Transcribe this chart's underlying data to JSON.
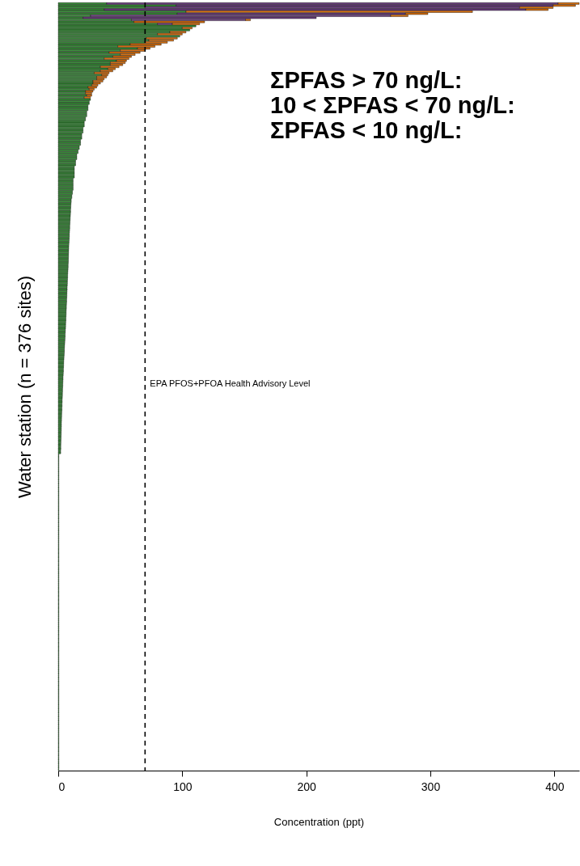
{
  "chart_data": {
    "type": "bar",
    "orientation": "horizontal",
    "stacked": true,
    "xlabel": "Concentration (ppt)",
    "ylabel": "Water station (n = 376 sites)",
    "xlim": [
      0,
      420
    ],
    "xticks": [
      0,
      100,
      200,
      300,
      400
    ],
    "grid": false,
    "categories": [
      null,
      null,
      null,
      null,
      null,
      null,
      null,
      null,
      null,
      null,
      null,
      null,
      null,
      null,
      null,
      null,
      null,
      null,
      null,
      null,
      null,
      null,
      null,
      null,
      null,
      null,
      null,
      null,
      null,
      null,
      null,
      null,
      null,
      null,
      null,
      null,
      null,
      null,
      null,
      null,
      null,
      null,
      null,
      null,
      null,
      null,
      null,
      null,
      null,
      null,
      null,
      null,
      null,
      null,
      null,
      null,
      null,
      null,
      null,
      null,
      null,
      null,
      null,
      null,
      null,
      null,
      null,
      null,
      null,
      null,
      null,
      null,
      null,
      null,
      null,
      null,
      null,
      null,
      null,
      null,
      null,
      null,
      null,
      null,
      null,
      null,
      null,
      null,
      null,
      null,
      null,
      null,
      null,
      null,
      null,
      null,
      null,
      null,
      null,
      null,
      null,
      null,
      null,
      null,
      null,
      null,
      null,
      null,
      null,
      null,
      null,
      null,
      null,
      null,
      null,
      null,
      null,
      null,
      null,
      null,
      null,
      null,
      null,
      null,
      null,
      null,
      null,
      null,
      null,
      null,
      null,
      null,
      null,
      null,
      null,
      null,
      null,
      null,
      null,
      null,
      null,
      null,
      null,
      null,
      null,
      null,
      null,
      null,
      null,
      null,
      null,
      null,
      null,
      null,
      null,
      null,
      null,
      null,
      null,
      null,
      null,
      null,
      null,
      null,
      null,
      null,
      null,
      null,
      null,
      null,
      null,
      null,
      null,
      null,
      null,
      null,
      null,
      null,
      null,
      null,
      null,
      null,
      null,
      null,
      null,
      null,
      null,
      null,
      null,
      null,
      null,
      null,
      null,
      null,
      null,
      null,
      null,
      null,
      null,
      null,
      null,
      null,
      null,
      null,
      null,
      null,
      null,
      null,
      null,
      null,
      null,
      null,
      null,
      null,
      null,
      null,
      null,
      null,
      null,
      null,
      null,
      null,
      null,
      null,
      null,
      null,
      null,
      null,
      null,
      null,
      null,
      null,
      null,
      null,
      null,
      null,
      null,
      null,
      null,
      null,
      null,
      null,
      null,
      null,
      null,
      null,
      null,
      null,
      null,
      null,
      null,
      null,
      null,
      null,
      null,
      null,
      null,
      null,
      null,
      null,
      null,
      null,
      null,
      null,
      null,
      null,
      null,
      null,
      null,
      null,
      null,
      null,
      null,
      null,
      null,
      null,
      null,
      null,
      null,
      null,
      null,
      null,
      null,
      null,
      null,
      null,
      null,
      null,
      null,
      null,
      null,
      null,
      null,
      null,
      null,
      null,
      null,
      null,
      null,
      null,
      null,
      null,
      null,
      null,
      null,
      null,
      null,
      null,
      null,
      null,
      null,
      null,
      null,
      null,
      null,
      null,
      null,
      null,
      null,
      null,
      null,
      null,
      null,
      null,
      null,
      null,
      null,
      null,
      null,
      null,
      null,
      null,
      null,
      null,
      null,
      null,
      null,
      null,
      null,
      null,
      null,
      null,
      null,
      null,
      null,
      null,
      null,
      null,
      null,
      null,
      null,
      null,
      null,
      null,
      null,
      null,
      null,
      null,
      null,
      null,
      null,
      null,
      null,
      null,
      null,
      null,
      null,
      null,
      null,
      null,
      null,
      null,
      null,
      null,
      null,
      null
    ],
    "series": [
      {
        "color": "#3a8f3a",
        "values": [
          39,
          95,
          70,
          37,
          103,
          96,
          26,
          20,
          59,
          61,
          80,
          111,
          100,
          106,
          90,
          80,
          98,
          71,
          73,
          70,
          58,
          48,
          64,
          50,
          41,
          50,
          44,
          37,
          47,
          42,
          42,
          34,
          40,
          34,
          29,
          35,
          31,
          31,
          28,
          28,
          27,
          24,
          25,
          22,
          22,
          23,
          21,
          26,
          25,
          25,
          24,
          24,
          24,
          23,
          23,
          23,
          22,
          22,
          21,
          21,
          21,
          20,
          20,
          20,
          19,
          19,
          19,
          18,
          18,
          18,
          17,
          17,
          16,
          16,
          15,
          15,
          15,
          14,
          14,
          14,
          13,
          13,
          13,
          13,
          13,
          13,
          12,
          12,
          12,
          12,
          12,
          12,
          11.5,
          11.5,
          11,
          11,
          10.5,
          10.5,
          10.3,
          10.2,
          10.1,
          10,
          10,
          9.9,
          9.8,
          9.7,
          9.6,
          9.5,
          9.4,
          9.3,
          9.3,
          9.2,
          9.1,
          9,
          9,
          8.9,
          8.8,
          8.7,
          8.6,
          8.5,
          8.5,
          8.4,
          8.4,
          8.3,
          8.3,
          8.2,
          8.2,
          8.1,
          8,
          8,
          7.9,
          7.8,
          7.7,
          7.6,
          7.6,
          7.5,
          7.4,
          7.4,
          7.3,
          7.2,
          7.2,
          7.1,
          7,
          7,
          6.9,
          6.8,
          6.8,
          6.7,
          6.6,
          6.6,
          6.5,
          6.4,
          6.4,
          6.3,
          6.2,
          6.2,
          6.1,
          6,
          6,
          5.9,
          5.8,
          5.7,
          5.6,
          5.6,
          5.5,
          5.4,
          5.3,
          5.2,
          5.1,
          5,
          5,
          4.9,
          4.8,
          4.7,
          4.6,
          4.5,
          4.4,
          4.4,
          4.3,
          4.2,
          4.2,
          4.1,
          4,
          3.9,
          3.9,
          3.8,
          3.7,
          3.7,
          3.6,
          3.5,
          3.5,
          3.4,
          3.4,
          3.3,
          3.2,
          3.2,
          3.1,
          3.1,
          3,
          3,
          2.9,
          2.8,
          2.8,
          2.7,
          2.7,
          2.6,
          2.6,
          2.6,
          2.5,
          2.5,
          2.4,
          2.4,
          2.3,
          2.3,
          2.2,
          2.2,
          2.1,
          2.1,
          2.1,
          2,
          2,
          0.5,
          0.5,
          0.5,
          0.5,
          0.5,
          0.5,
          0.5,
          0.5,
          0.5,
          0.5,
          0.5,
          0.5,
          0.5,
          0.5,
          0.5,
          0.5,
          0.5,
          0.5,
          0.5,
          0.5,
          0.5,
          0.5,
          0.5,
          0.5,
          0.5,
          0.5,
          0.5,
          0.5,
          0.5,
          0.5,
          0.5,
          0.5,
          0.5,
          0.5,
          0.5,
          0.5,
          0.5,
          0.5,
          0.5,
          0.5,
          0.5,
          0.5,
          0.5,
          0.5,
          0.5,
          0.5,
          0.5,
          0.5,
          0.5,
          0.5,
          0.5,
          0.5,
          0.5,
          0.5,
          0.5,
          0.5,
          0.5,
          0.5,
          0.5,
          0.5,
          0.5,
          0.5,
          0.5,
          0.5,
          0.5,
          0.5,
          0.5,
          0.5,
          0.5,
          0.5,
          0.5,
          0.5,
          0.5,
          0.5,
          0.5,
          0.5,
          0.5,
          0.5,
          0.5,
          0.5,
          0.5,
          0.5,
          0.5,
          0.5,
          0.5,
          0.5,
          0.5,
          0.5,
          0.5,
          0.5,
          0.5,
          0.5,
          0.5,
          0.5,
          0.5,
          0.5,
          0.5,
          0.5,
          0.5,
          0.5,
          0.5,
          0.5,
          0.5,
          0.5,
          0.5,
          0.5,
          0.5,
          0.5,
          0.5,
          0.5,
          0.5,
          0.5,
          0.5,
          0.5,
          0.5,
          0.5,
          0.5,
          0.5,
          0.5,
          0.5,
          0.5,
          0.5,
          0.5,
          0.5,
          0.5,
          0.5,
          0.5,
          0.5,
          0.5,
          0.5,
          0.5,
          0.5,
          0.5,
          0.5,
          0.5,
          0.5,
          0.5,
          0.5,
          0.5,
          0.5,
          0.5,
          0.5,
          0.5,
          0.5,
          0.5,
          0.5,
          0.5,
          0.5,
          0.5,
          0.5,
          0.5,
          0.5,
          0.5,
          0.5,
          0.5
        ]
      },
      {
        "color": "#6b3f7f",
        "values": [
          364,
          304,
          302,
          340,
          0,
          184,
          242,
          188,
          92,
          0,
          12,
          0,
          0,
          0,
          0,
          0,
          0,
          0,
          0,
          0,
          0,
          0,
          0,
          0,
          0,
          0,
          0,
          0,
          0,
          0,
          0,
          0,
          0,
          0,
          0,
          0,
          0,
          0,
          0,
          0,
          0,
          0,
          0,
          0,
          0,
          0,
          0,
          0,
          0,
          0,
          0,
          0,
          0,
          0,
          0,
          0,
          0,
          0,
          0,
          0,
          0,
          0,
          0,
          0,
          0,
          0,
          0,
          0,
          0,
          0,
          0,
          0,
          0,
          0,
          0,
          0,
          0,
          0,
          0,
          0,
          0,
          0,
          0,
          0,
          0,
          0,
          0,
          0,
          0,
          0,
          0,
          0,
          0,
          0,
          0,
          0,
          0,
          0,
          0,
          0,
          0,
          0,
          0,
          0,
          0,
          0,
          0,
          0,
          0,
          0,
          0,
          0,
          0,
          0,
          0,
          0,
          0,
          0,
          0,
          0,
          0,
          0,
          0,
          0,
          0,
          0,
          0,
          0,
          0,
          0,
          0,
          0,
          0,
          0,
          0,
          0,
          0,
          0,
          0,
          0,
          0,
          0,
          0,
          0,
          0,
          0,
          0,
          0,
          0,
          0,
          0,
          0,
          0,
          0,
          0,
          0,
          0,
          0,
          0,
          0,
          0,
          0,
          0,
          0,
          0,
          0,
          0,
          0,
          0,
          0,
          0,
          0,
          0,
          0,
          0,
          0,
          0,
          0,
          0,
          0,
          0,
          0,
          0,
          0,
          0,
          0,
          0,
          0,
          0,
          0,
          0,
          0,
          0,
          0,
          0,
          0,
          0,
          0,
          0,
          0,
          0,
          0,
          0,
          0,
          0,
          0,
          0,
          0,
          0,
          0,
          0,
          0,
          0,
          0,
          0,
          0,
          0,
          0,
          0,
          0,
          0,
          0,
          0,
          0,
          0,
          0,
          0,
          0,
          0,
          0,
          0,
          0,
          0,
          0,
          0,
          0,
          0,
          0,
          0,
          0,
          0,
          0,
          0,
          0,
          0,
          0,
          0,
          0,
          0,
          0,
          0,
          0,
          0,
          0,
          0,
          0,
          0,
          0,
          0,
          0,
          0,
          0,
          0,
          0,
          0,
          0,
          0,
          0,
          0,
          0,
          0,
          0,
          0,
          0,
          0,
          0,
          0,
          0,
          0,
          0,
          0,
          0,
          0,
          0,
          0,
          0,
          0,
          0,
          0,
          0,
          0,
          0,
          0,
          0,
          0,
          0,
          0,
          0,
          0,
          0,
          0,
          0,
          0,
          0,
          0,
          0,
          0,
          0,
          0,
          0,
          0,
          0,
          0,
          0,
          0,
          0,
          0,
          0,
          0,
          0,
          0,
          0,
          0,
          0,
          0,
          0,
          0,
          0,
          0,
          0,
          0,
          0,
          0,
          0,
          0,
          0,
          0,
          0,
          0,
          0,
          0,
          0,
          0,
          0,
          0,
          0,
          0,
          0,
          0,
          0,
          0,
          0,
          0,
          0,
          0,
          0,
          0,
          0,
          0,
          0,
          0,
          0,
          0,
          0,
          0,
          0,
          0,
          0,
          0,
          0,
          0,
          0,
          0,
          0,
          0,
          0
        ]
      },
      {
        "color": "#d9700f",
        "values": [
          17,
          18,
          27,
          18,
          231,
          18,
          14,
          0,
          4,
          57,
          22,
          0,
          8,
          0,
          13,
          20,
          0,
          25,
          20,
          18,
          25,
          30,
          10,
          20,
          25,
          12,
          15,
          20,
          8,
          12,
          10,
          15,
          6,
          10,
          12,
          5,
          8,
          6,
          8,
          6,
          5,
          7,
          4,
          6,
          5,
          4,
          5,
          0,
          0,
          0,
          0,
          0,
          0,
          0,
          0,
          0,
          0,
          0,
          0,
          0,
          0,
          0,
          0,
          0,
          0,
          0,
          0,
          0,
          0,
          0,
          0,
          0,
          0,
          0,
          0,
          0,
          0,
          0,
          0,
          0,
          0,
          0,
          0,
          0,
          0,
          0,
          0,
          0,
          0,
          0,
          0,
          0,
          0,
          0,
          0,
          0,
          0,
          0,
          0,
          0,
          0,
          0,
          0,
          0,
          0,
          0,
          0,
          0,
          0,
          0,
          0,
          0,
          0,
          0,
          0,
          0,
          0,
          0,
          0,
          0,
          0,
          0,
          0,
          0,
          0,
          0,
          0,
          0,
          0,
          0,
          0,
          0,
          0,
          0,
          0,
          0,
          0,
          0,
          0,
          0,
          0,
          0,
          0,
          0,
          0,
          0,
          0,
          0,
          0,
          0,
          0,
          0,
          0,
          0,
          0,
          0,
          0,
          0,
          0,
          0,
          0,
          0,
          0,
          0,
          0,
          0,
          0,
          0,
          0,
          0,
          0,
          0,
          0,
          0,
          0,
          0,
          0,
          0,
          0,
          0,
          0,
          0,
          0,
          0,
          0,
          0,
          0,
          0,
          0,
          0,
          0,
          0,
          0,
          0,
          0,
          0,
          0,
          0,
          0,
          0,
          0,
          0,
          0,
          0,
          0,
          0,
          0,
          0,
          0,
          0,
          0,
          0,
          0,
          0,
          0,
          0,
          0,
          0,
          0,
          0,
          0,
          0,
          0,
          0,
          0,
          0,
          0,
          0,
          0,
          0,
          0,
          0,
          0,
          0,
          0,
          0,
          0,
          0,
          0,
          0,
          0,
          0,
          0,
          0,
          0,
          0,
          0,
          0,
          0,
          0,
          0,
          0,
          0,
          0,
          0,
          0,
          0,
          0,
          0,
          0,
          0,
          0,
          0,
          0,
          0,
          0,
          0,
          0,
          0,
          0,
          0,
          0,
          0,
          0,
          0,
          0,
          0,
          0,
          0,
          0,
          0,
          0,
          0,
          0,
          0,
          0,
          0,
          0,
          0,
          0,
          0,
          0,
          0,
          0,
          0,
          0,
          0,
          0,
          0,
          0,
          0,
          0,
          0,
          0,
          0,
          0,
          0,
          0,
          0,
          0,
          0,
          0,
          0,
          0,
          0,
          0,
          0,
          0,
          0,
          0,
          0,
          0,
          0,
          0,
          0,
          0,
          0,
          0,
          0,
          0,
          0,
          0,
          0,
          0,
          0,
          0,
          0,
          0,
          0,
          0,
          0,
          0,
          0,
          0,
          0,
          0,
          0,
          0,
          0,
          0,
          0,
          0,
          0,
          0,
          0,
          0,
          0,
          0,
          0,
          0,
          0,
          0,
          0,
          0,
          0,
          0,
          0,
          0,
          0,
          0,
          0,
          0,
          0,
          0,
          0,
          0
        ]
      }
    ],
    "ref_lines": [
      {
        "axis": "x",
        "value": 70,
        "label": "EPA PFOS+PFOA Health Advisory Level",
        "color": "#000000",
        "line_style": "dashed"
      }
    ],
    "annotations": [
      "ΣPFAS > 70 ng/L:",
      "10 < ΣPFAS < 70 ng/L:",
      "ΣPFAS < 10 ng/L:"
    ]
  }
}
